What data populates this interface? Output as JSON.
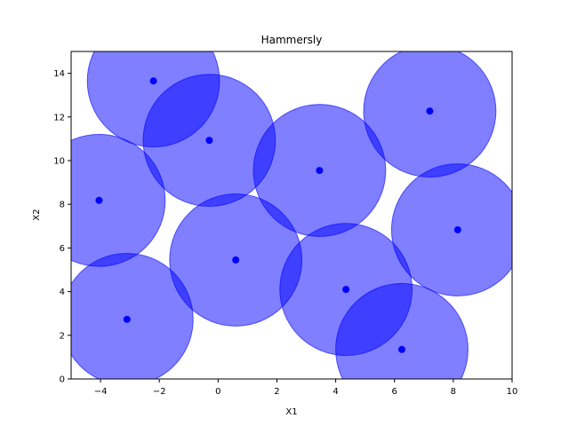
{
  "chart_data": {
    "type": "scatter",
    "title": "Hammersly",
    "xlabel": "X1",
    "ylabel": "X2",
    "xlim": [
      -5,
      10
    ],
    "ylim": [
      0,
      15
    ],
    "xticks": [
      "−4",
      "−2",
      "0",
      "2",
      "4",
      "6",
      "8",
      "10"
    ],
    "xtick_values": [
      -4,
      -2,
      0,
      2,
      4,
      6,
      8,
      10
    ],
    "yticks": [
      "0",
      "2",
      "4",
      "6",
      "8",
      "10",
      "12",
      "14"
    ],
    "ytick_values": [
      0,
      2,
      4,
      6,
      8,
      10,
      12,
      14
    ],
    "grid": false,
    "circle_radius": 2.25,
    "points": [
      {
        "x": -2.2,
        "y": 13.65
      },
      {
        "x": -0.3,
        "y": 10.93
      },
      {
        "x": 7.2,
        "y": 12.27
      },
      {
        "x": 3.45,
        "y": 9.55
      },
      {
        "x": -4.05,
        "y": 8.18
      },
      {
        "x": 8.15,
        "y": 6.83
      },
      {
        "x": 0.6,
        "y": 5.45
      },
      {
        "x": 4.35,
        "y": 4.1
      },
      {
        "x": -3.1,
        "y": 2.73
      },
      {
        "x": 6.25,
        "y": 1.35
      }
    ],
    "colors": {
      "point": "#0000ff",
      "circle_fill": "#0000ff",
      "circle_fill_opacity": 0.5,
      "axis": "#000000"
    }
  }
}
